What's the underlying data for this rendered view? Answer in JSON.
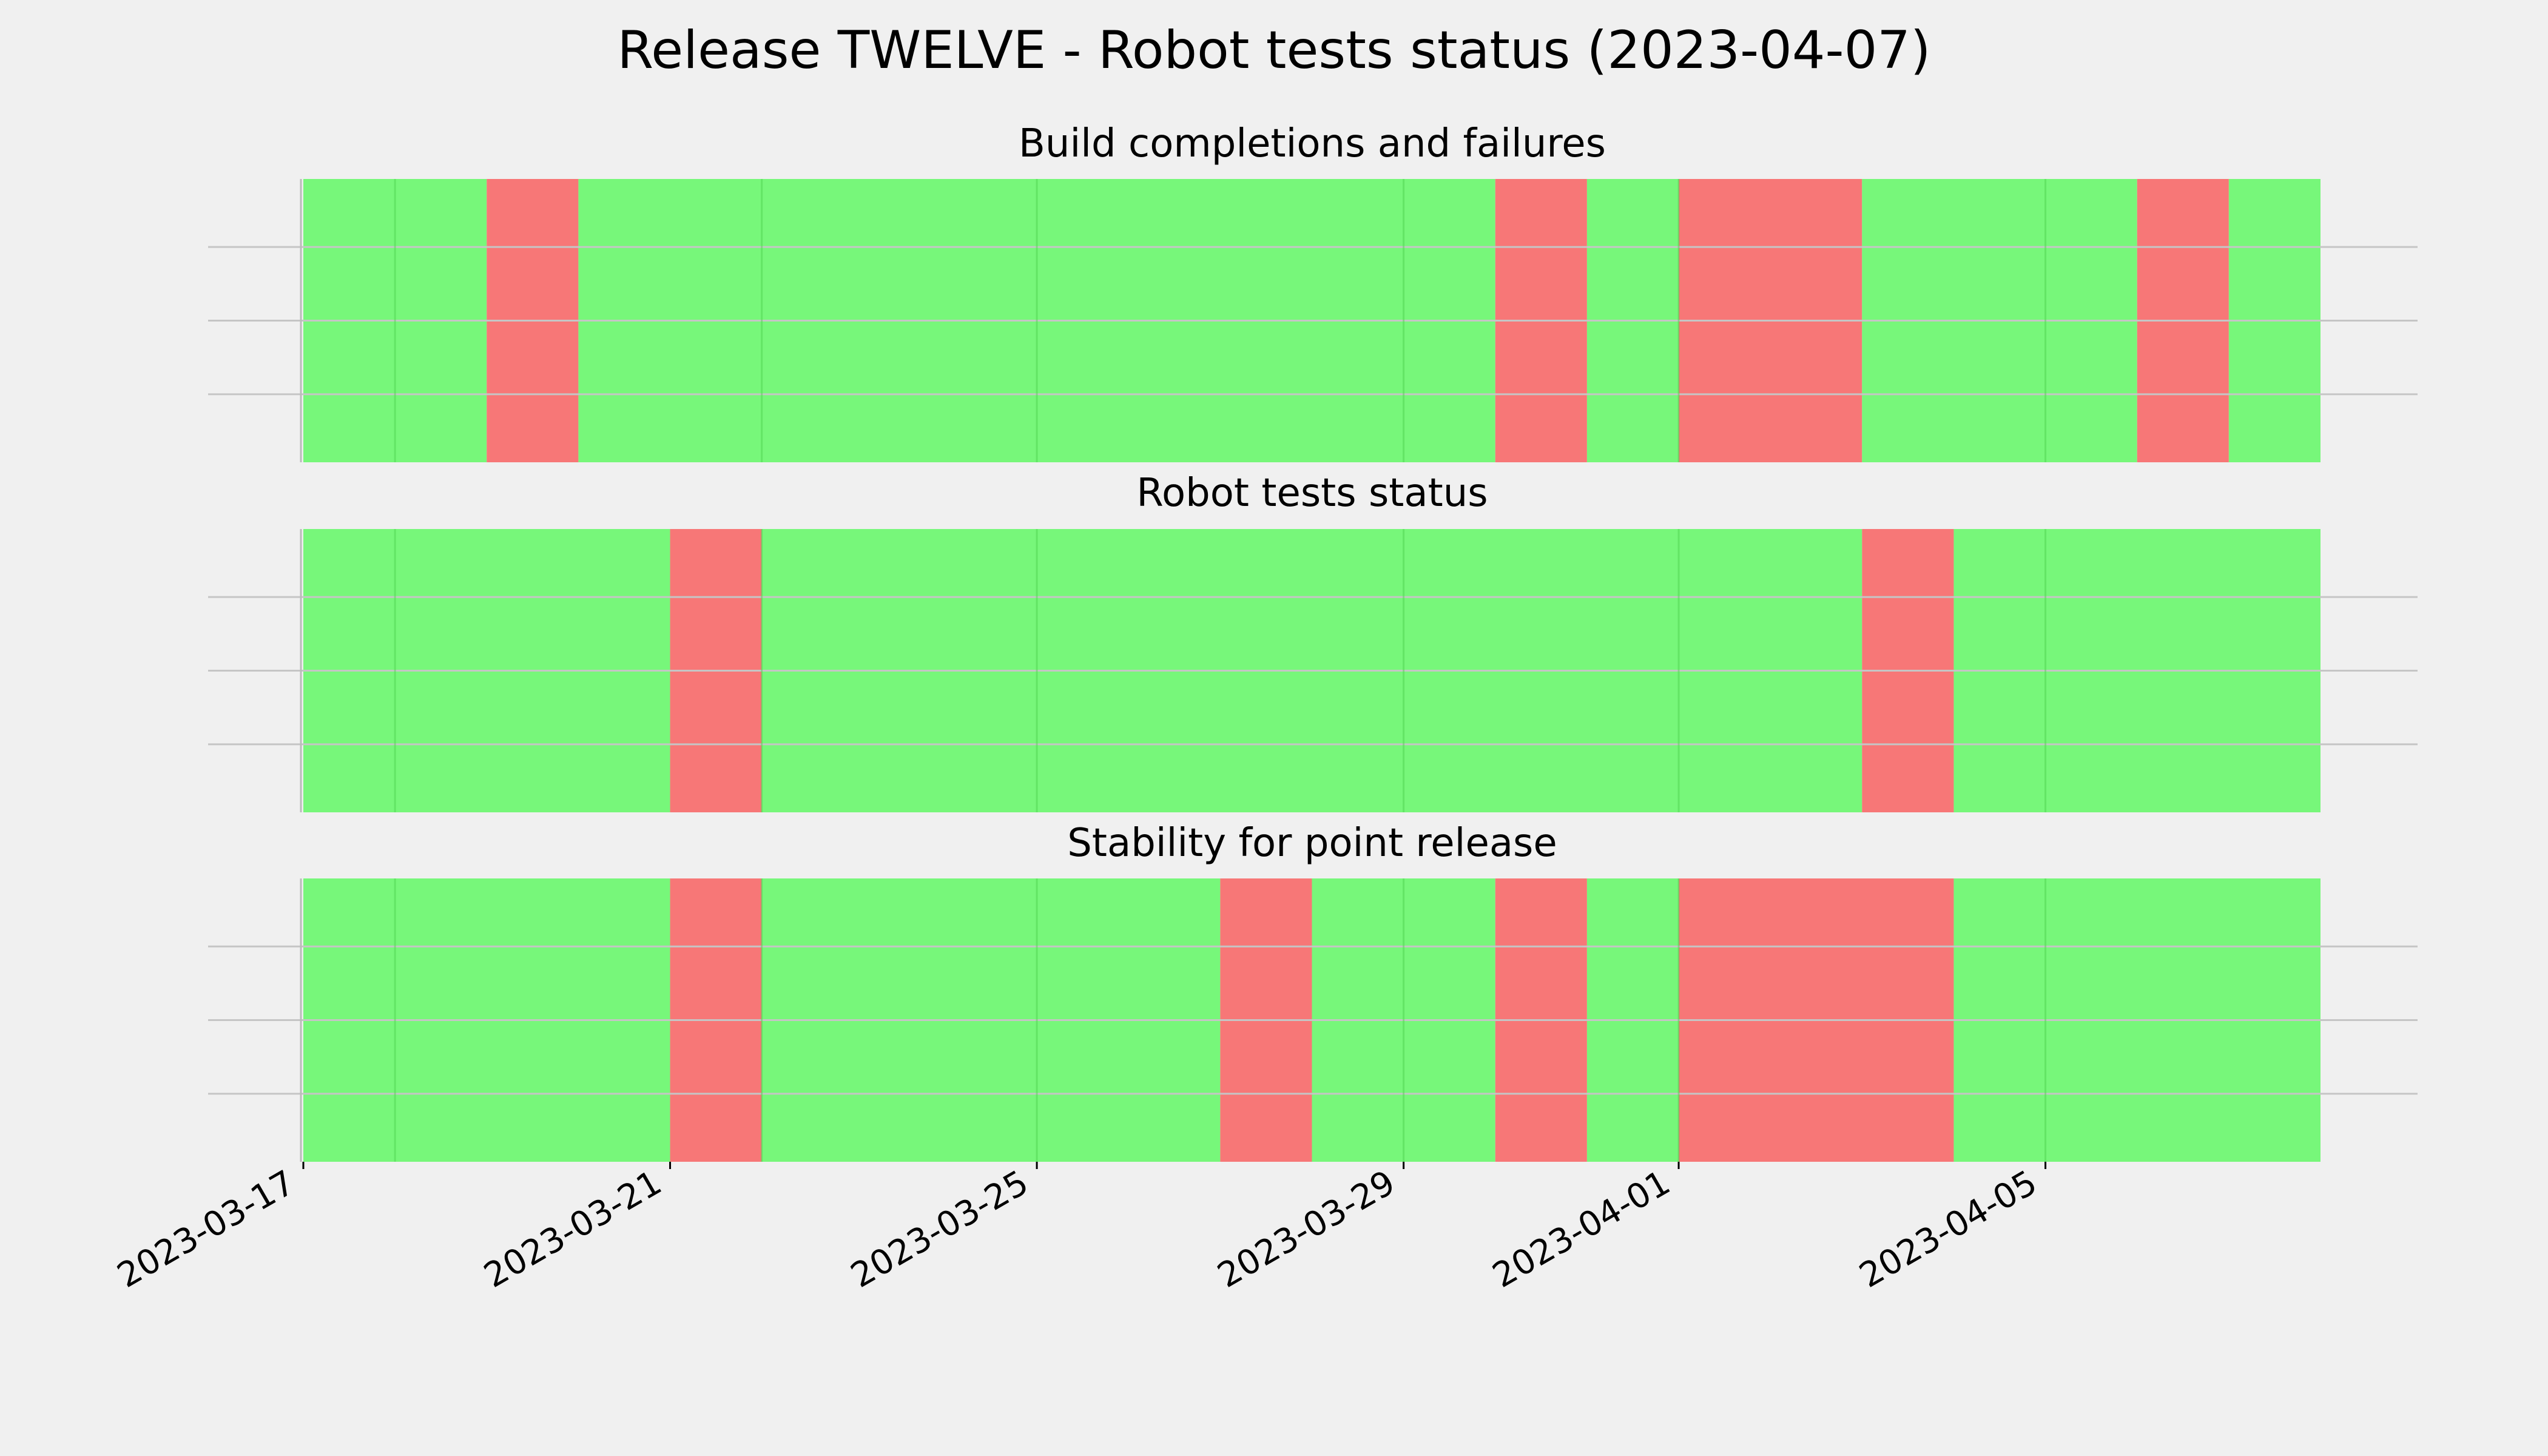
{
  "chart_data": {
    "type": "timeline",
    "title": "Release TWELVE - Robot tests status (2023-04-07)",
    "date_range": [
      "2023-03-17",
      "2023-04-08"
    ],
    "x_ticks": [
      "2023-03-17",
      "2023-03-21",
      "2023-03-25",
      "2023-03-29",
      "2023-04-01",
      "2023-04-05"
    ],
    "grid": true,
    "colors": {
      "ok": "#77f77a",
      "fail": "#f77777"
    },
    "panels": [
      {
        "title": "Build completions and failures",
        "segments": [
          {
            "start": "2023-03-17",
            "end": "2023-03-19",
            "status": "ok"
          },
          {
            "start": "2023-03-19",
            "end": "2023-03-20",
            "status": "fail"
          },
          {
            "start": "2023-03-20",
            "end": "2023-03-30",
            "status": "ok"
          },
          {
            "start": "2023-03-30",
            "end": "2023-03-31",
            "status": "fail"
          },
          {
            "start": "2023-03-31",
            "end": "2023-04-01",
            "status": "ok"
          },
          {
            "start": "2023-04-01",
            "end": "2023-04-03",
            "status": "fail"
          },
          {
            "start": "2023-04-03",
            "end": "2023-04-06",
            "status": "ok"
          },
          {
            "start": "2023-04-06",
            "end": "2023-04-07",
            "status": "fail"
          },
          {
            "start": "2023-04-07",
            "end": "2023-04-08",
            "status": "ok"
          }
        ]
      },
      {
        "title": "Robot tests status",
        "segments": [
          {
            "start": "2023-03-17",
            "end": "2023-03-21",
            "status": "ok"
          },
          {
            "start": "2023-03-21",
            "end": "2023-03-22",
            "status": "fail"
          },
          {
            "start": "2023-03-22",
            "end": "2023-04-03",
            "status": "ok"
          },
          {
            "start": "2023-04-03",
            "end": "2023-04-04",
            "status": "fail"
          },
          {
            "start": "2023-04-04",
            "end": "2023-04-08",
            "status": "ok"
          }
        ]
      },
      {
        "title": "Stability for point release",
        "segments": [
          {
            "start": "2023-03-17",
            "end": "2023-03-21",
            "status": "ok"
          },
          {
            "start": "2023-03-21",
            "end": "2023-03-22",
            "status": "fail"
          },
          {
            "start": "2023-03-22",
            "end": "2023-03-27",
            "status": "ok"
          },
          {
            "start": "2023-03-27",
            "end": "2023-03-28",
            "status": "fail"
          },
          {
            "start": "2023-03-28",
            "end": "2023-03-30",
            "status": "ok"
          },
          {
            "start": "2023-03-30",
            "end": "2023-03-31",
            "status": "fail"
          },
          {
            "start": "2023-03-31",
            "end": "2023-04-01",
            "status": "ok"
          },
          {
            "start": "2023-04-01",
            "end": "2023-04-04",
            "status": "fail"
          },
          {
            "start": "2023-04-04",
            "end": "2023-04-08",
            "status": "ok"
          }
        ]
      }
    ]
  }
}
